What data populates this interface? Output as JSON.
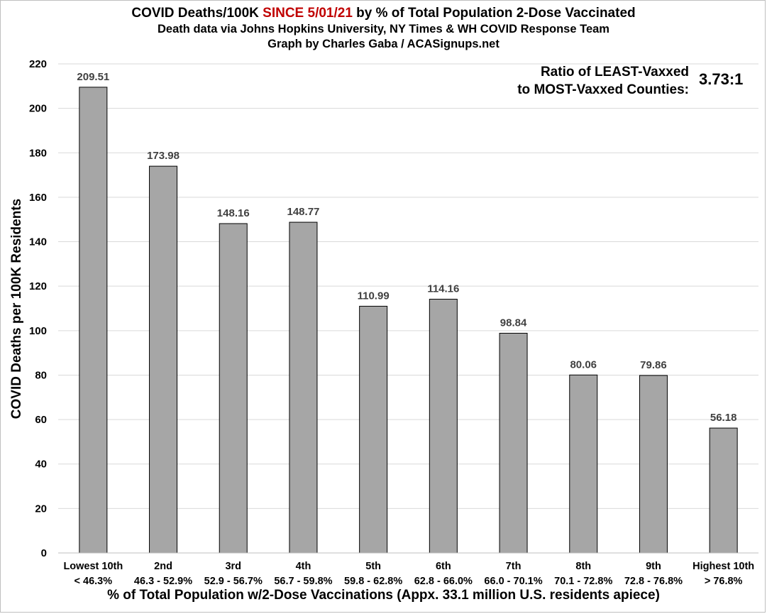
{
  "chart_data": {
    "type": "bar",
    "title_prefix": "COVID Deaths/100K ",
    "title_highlight": "SINCE 5/01/21",
    "title_suffix": " by % of Total Population 2-Dose Vaccinated",
    "subtitle_line1": "Death data via Johns Hopkins University, NY Times & WH COVID Response Team",
    "subtitle_line2": "Graph by Charles Gaba / ACASignups.net",
    "ylabel": "COVID Deaths per 100K Residents",
    "xlabel": "% of Total Population w/2-Dose Vaccinations (Appx. 33.1 million U.S. residents apiece)",
    "ylim": [
      0,
      220
    ],
    "ytick_step": 20,
    "grid": true,
    "categories": [
      [
        "Lowest 10th",
        "< 46.3%"
      ],
      [
        "2nd",
        "46.3 - 52.9%"
      ],
      [
        "3rd",
        "52.9 - 56.7%"
      ],
      [
        "4th",
        "56.7 - 59.8%"
      ],
      [
        "5th",
        "59.8 - 62.8%"
      ],
      [
        "6th",
        "62.8 - 66.0%"
      ],
      [
        "7th",
        "66.0 - 70.1%"
      ],
      [
        "8th",
        "70.1 - 72.8%"
      ],
      [
        "9th",
        "72.8 - 76.8%"
      ],
      [
        "Highest 10th",
        "> 76.8%"
      ]
    ],
    "values": [
      209.51,
      173.98,
      148.16,
      148.77,
      110.99,
      114.16,
      98.84,
      80.06,
      79.86,
      56.18
    ],
    "data_labels": [
      "209.51",
      "173.98",
      "148.16",
      "148.77",
      "110.99",
      "114.16",
      "98.84",
      "80.06",
      "79.86",
      "56.18"
    ],
    "annotation": {
      "line1": "Ratio of LEAST-Vaxxed",
      "line2": "to MOST-Vaxxed Counties:",
      "value": "3.73:1"
    },
    "colors": {
      "bar_fill": "#a6a6a6",
      "bar_stroke": "#000000",
      "grid": "#d9d9d9",
      "highlight": "#c00000",
      "data_label": "#404040"
    }
  }
}
